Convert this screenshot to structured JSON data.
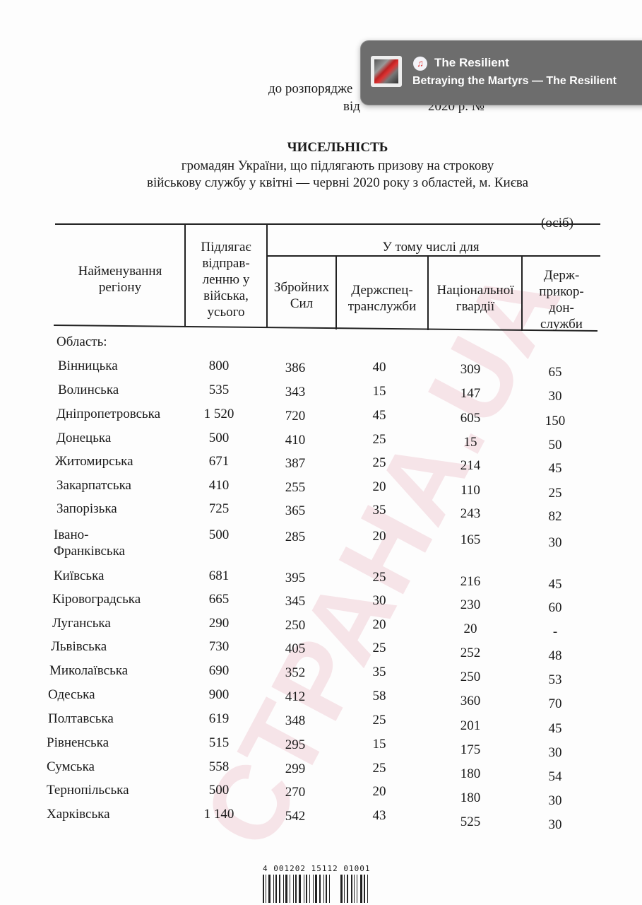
{
  "header": {
    "line1": "до розпорядже",
    "line2_a": "від",
    "line2_b": "2020 р. №"
  },
  "title": "ЧИСЕЛЬНІСТЬ",
  "subtitle1": "громадян України, що підлягають призову на строкову",
  "subtitle2": "військову службу у квітні — червні 2020 року з областей, м. Києва",
  "units": "(осіб)",
  "columns": {
    "region": [
      "Найменування",
      "регіону"
    ],
    "total": [
      "Підлягає",
      "відправ-",
      "ленню у",
      "війська,",
      "усього"
    ],
    "group": "У тому числі для",
    "zsu": [
      "Збройних",
      "Сил"
    ],
    "dsts": [
      "Держспец-",
      "транслужби"
    ],
    "ngu": [
      "Національної",
      "гвардії"
    ],
    "dpsu": [
      "Держ-",
      "прикор-",
      "дон-",
      "служби"
    ]
  },
  "section": "Область:",
  "rows": [
    {
      "name": "Вінницька",
      "total": "800",
      "zsu": "386",
      "dsts": "40",
      "ngu": "309",
      "dpsu": "65"
    },
    {
      "name": "Волинська",
      "total": "535",
      "zsu": "343",
      "dsts": "15",
      "ngu": "147",
      "dpsu": "30"
    },
    {
      "name": "Дніпропетровська",
      "total": "1 520",
      "zsu": "720",
      "dsts": "45",
      "ngu": "605",
      "dpsu": "150"
    },
    {
      "name": "Донецька",
      "total": "500",
      "zsu": "410",
      "dsts": "25",
      "ngu": "15",
      "dpsu": "50"
    },
    {
      "name": "Житомирська",
      "total": "671",
      "zsu": "387",
      "dsts": "25",
      "ngu": "214",
      "dpsu": "45"
    },
    {
      "name": "Закарпатська",
      "total": "410",
      "zsu": "255",
      "dsts": "20",
      "ngu": "110",
      "dpsu": "25"
    },
    {
      "name": "Запорізька",
      "total": "725",
      "zsu": "365",
      "dsts": "35",
      "ngu": "243",
      "dpsu": "82"
    },
    {
      "name": "Івано-",
      "name2": "Франківська",
      "total": "500",
      "zsu": "285",
      "dsts": "20",
      "ngu": "165",
      "dpsu": "30"
    },
    {
      "name": "Київська",
      "total": "681",
      "zsu": "395",
      "dsts": "25",
      "ngu": "216",
      "dpsu": "45"
    },
    {
      "name": "Кіровоградська",
      "total": "665",
      "zsu": "345",
      "dsts": "30",
      "ngu": "230",
      "dpsu": "60"
    },
    {
      "name": "Луганська",
      "total": "290",
      "zsu": "250",
      "dsts": "20",
      "ngu": "20",
      "dpsu": "-"
    },
    {
      "name": "Львівська",
      "total": "730",
      "zsu": "405",
      "dsts": "25",
      "ngu": "252",
      "dpsu": "48"
    },
    {
      "name": "Миколаївська",
      "total": "690",
      "zsu": "352",
      "dsts": "35",
      "ngu": "250",
      "dpsu": "53"
    },
    {
      "name": "Одеська",
      "total": "900",
      "zsu": "412",
      "dsts": "58",
      "ngu": "360",
      "dpsu": "70"
    },
    {
      "name": "Полтавська",
      "total": "619",
      "zsu": "348",
      "dsts": "25",
      "ngu": "201",
      "dpsu": "45"
    },
    {
      "name": "Рівненська",
      "total": "515",
      "zsu": "295",
      "dsts": "15",
      "ngu": "175",
      "dpsu": "30"
    },
    {
      "name": "Сумська",
      "total": "558",
      "zsu": "299",
      "dsts": "25",
      "ngu": "180",
      "dpsu": "54"
    },
    {
      "name": "Тернопільська",
      "total": "500",
      "zsu": "270",
      "dsts": "20",
      "ngu": "180",
      "dpsu": "30"
    },
    {
      "name": "Харківська",
      "total": "1 140",
      "zsu": "542",
      "dsts": "43",
      "ngu": "525",
      "dpsu": "30"
    }
  ],
  "watermark": "СТРАНА.UA",
  "barcode": "4 001202 15112   01001",
  "notification": {
    "app": "The Resilient",
    "body": "Betraying the Martyrs — The Resilient",
    "app_icon": "music-note-icon",
    "accent": "#6d6d6d"
  }
}
